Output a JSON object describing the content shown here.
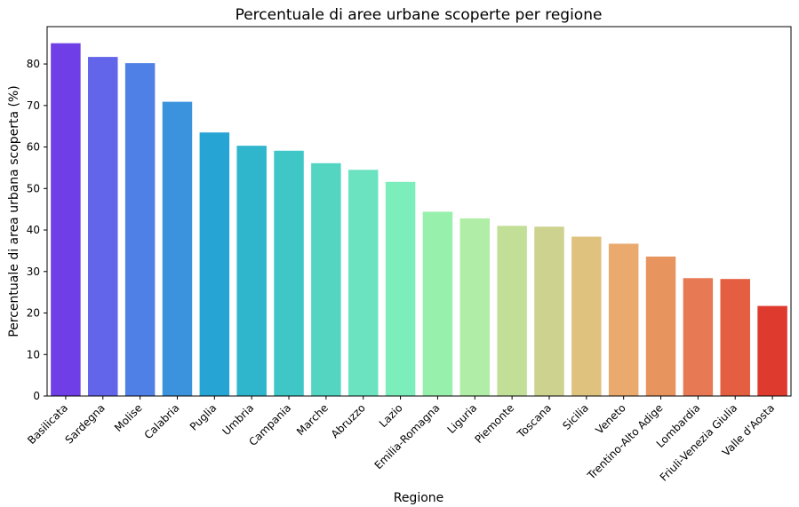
{
  "chart_data": {
    "type": "bar",
    "title": "Percentuale di aree urbane scoperte per regione",
    "xlabel": "Regione",
    "ylabel": "Percentuale di area urbana scoperta (%)",
    "ylim": [
      0,
      89
    ],
    "yticks": [
      0,
      10,
      20,
      30,
      40,
      50,
      60,
      70,
      80
    ],
    "grid": false,
    "legend": "none",
    "categories": [
      "Basilicata",
      "Sardegna",
      "Molise",
      "Calabria",
      "Puglia",
      "Umbria",
      "Campania",
      "Marche",
      "Abruzzo",
      "Lazio",
      "Emilia-Romagna",
      "Liguria",
      "Piemonte",
      "Toscana",
      "Sicilia",
      "Veneto",
      "Trentino-Alto Adige",
      "Lombardia",
      "Friuli-Venezia Giulia",
      "Valle d'Aosta"
    ],
    "values": [
      85.0,
      81.7,
      80.2,
      70.9,
      63.5,
      60.3,
      59.1,
      56.1,
      54.5,
      51.6,
      44.4,
      42.8,
      41.0,
      40.8,
      38.4,
      36.7,
      33.6,
      28.4,
      28.2,
      21.7
    ],
    "colors": [
      "#6f3ee6",
      "#6264ea",
      "#4e80e6",
      "#3c93dd",
      "#26a4d4",
      "#2fb6cd",
      "#3fc7c8",
      "#54d5c2",
      "#6be3c1",
      "#7ceebb",
      "#97f1ac",
      "#b0eda7",
      "#c2df98",
      "#cdd28e",
      "#e0c27f",
      "#eaaa6e",
      "#e8945f",
      "#e77a55",
      "#e45e42",
      "#de3a2e"
    ]
  }
}
